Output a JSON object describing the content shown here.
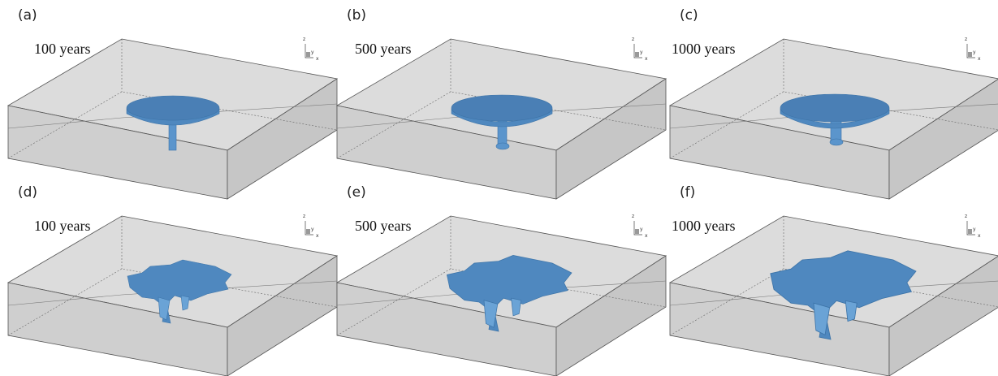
{
  "panels": [
    {
      "label": "(a)",
      "time": "100 years",
      "axes": [
        "z",
        "y",
        "x"
      ]
    },
    {
      "label": "(b)",
      "time": "500 years",
      "axes": [
        "z",
        "y",
        "x"
      ]
    },
    {
      "label": "(c)",
      "time": "1000 years",
      "axes": [
        "z",
        "y",
        "x"
      ]
    },
    {
      "label": "(d)",
      "time": "100 years",
      "axes": [
        "z",
        "y",
        "x"
      ]
    },
    {
      "label": "(e)",
      "time": "500 years",
      "axes": [
        "z",
        "y",
        "x"
      ]
    },
    {
      "label": "(f)",
      "time": "1000 years",
      "axes": [
        "z",
        "y",
        "x"
      ]
    }
  ]
}
